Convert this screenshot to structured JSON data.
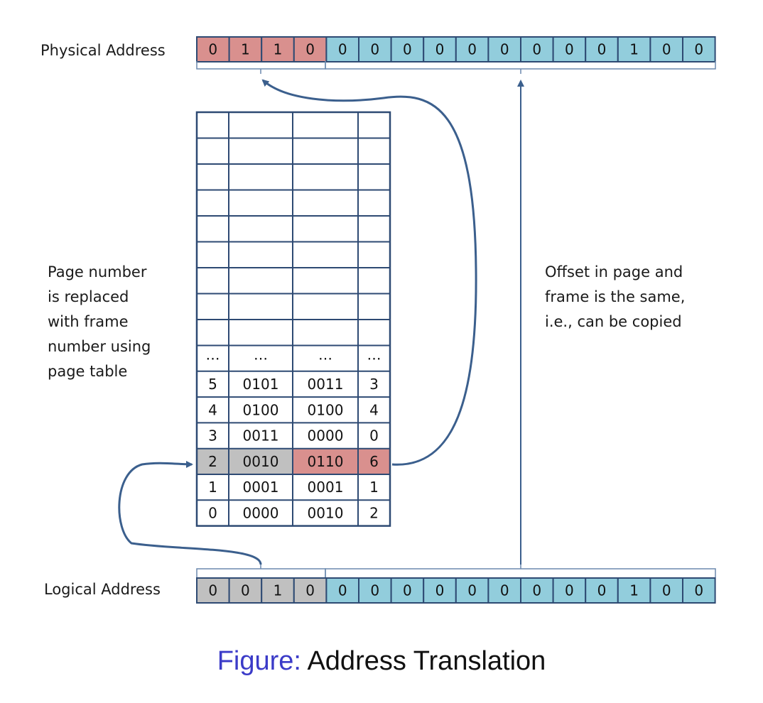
{
  "physical_address": {
    "label": "Physical Address",
    "bits": [
      "0",
      "1",
      "1",
      "0",
      "0",
      "0",
      "0",
      "0",
      "0",
      "0",
      "0",
      "0",
      "0",
      "1",
      "0",
      "0"
    ],
    "frame_bit_count": 4
  },
  "logical_address": {
    "label": "Logical Address",
    "bits": [
      "0",
      "0",
      "1",
      "0",
      "0",
      "0",
      "0",
      "0",
      "0",
      "0",
      "0",
      "0",
      "0",
      "1",
      "0",
      "0"
    ],
    "page_bit_count": 4
  },
  "page_table": {
    "empty_row_count": 9,
    "ellipsis": [
      "…",
      "…",
      "…",
      "…"
    ],
    "rows": [
      [
        "5",
        "0101",
        "0011",
        "3"
      ],
      [
        "4",
        "0100",
        "0100",
        "4"
      ],
      [
        "3",
        "0011",
        "0000",
        "0"
      ],
      [
        "2",
        "0010",
        "0110",
        "6"
      ],
      [
        "1",
        "0001",
        "0001",
        "1"
      ],
      [
        "0",
        "0000",
        "0010",
        "2"
      ]
    ],
    "highlight_row": 3
  },
  "notes": {
    "left": [
      "Page number",
      "is replaced",
      "with frame",
      "number using",
      "page table"
    ],
    "right": [
      "Offset in page and",
      "frame is the same,",
      "i.e., can be copied"
    ]
  },
  "caption": {
    "prefix": "Figure:",
    "title": "Address Translation"
  },
  "colors": {
    "frame_bits": "#d9908e",
    "offset_bits": "#92cddc",
    "page_bits": "#c0c0c0",
    "line": "#3b5f8d",
    "caption_prefix": "#3b3bc8"
  }
}
